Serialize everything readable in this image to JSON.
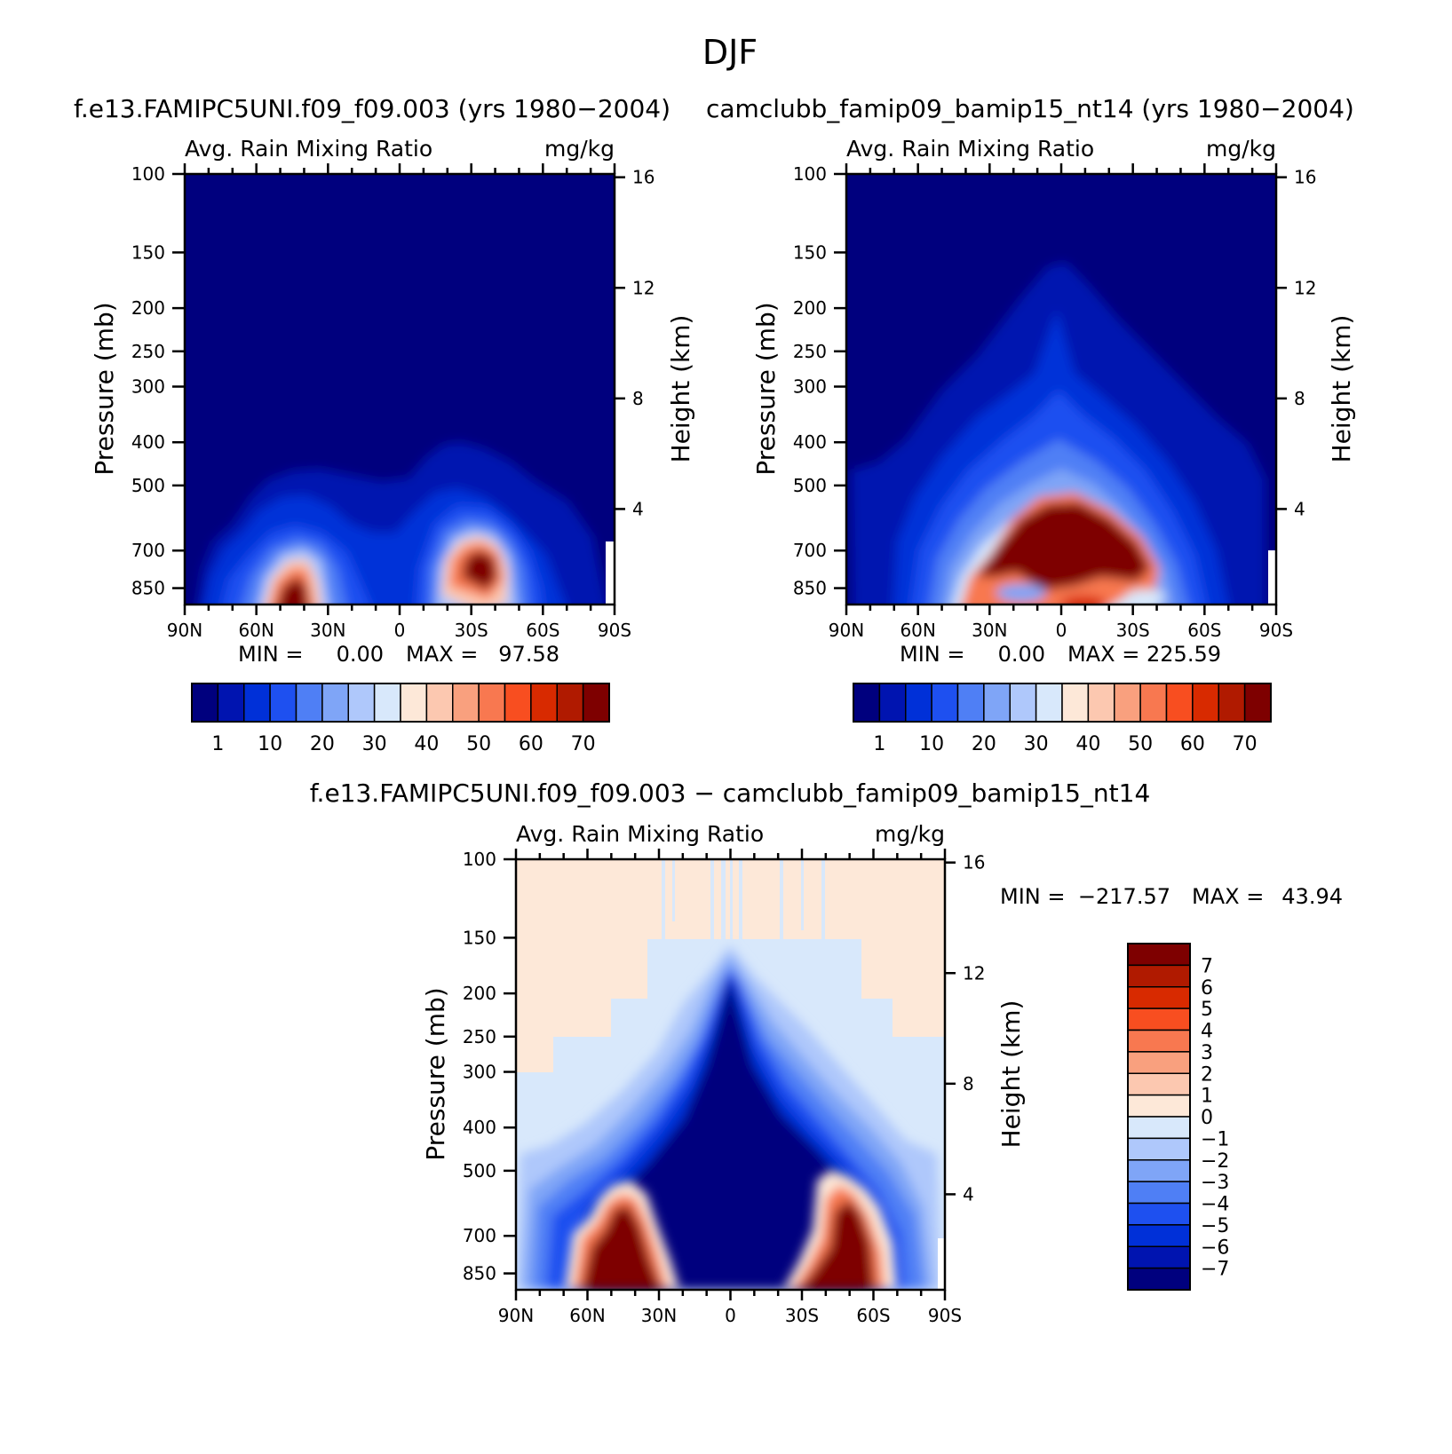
{
  "figure": {
    "title": "DJF"
  },
  "colors": {
    "abs_scale": [
      "#00007e",
      "#0014b0",
      "#0030d8",
      "#1e50f0",
      "#4f7ff5",
      "#7fa5f7",
      "#afc8fb",
      "#d8e8fb",
      "#fde8d8",
      "#fcc8b0",
      "#f9a07e",
      "#f87850",
      "#f84e20",
      "#d82a00",
      "#b01a00",
      "#7e0000"
    ],
    "diff_scale": [
      "#00007e",
      "#0014b0",
      "#0030d8",
      "#1e50f0",
      "#4f7ff5",
      "#7fa5f7",
      "#afc8fb",
      "#d8e8fb",
      "#fde8d8",
      "#fcc8b0",
      "#f9a07e",
      "#f87850",
      "#f84e20",
      "#d82a00",
      "#b01a00",
      "#7e0000"
    ]
  },
  "chart_data": [
    {
      "type": "heatmap",
      "title": "f.e13.FAMIPC5UNI.f09_f09.003 (yrs 1980−2004)",
      "subtitle_left": "Avg. Rain Mixing Ratio",
      "subtitle_right": "mg/kg",
      "ylabel": "Pressure (mb)",
      "ylabel_right": "Height (km)",
      "x_ticks": [
        "90N",
        "60N",
        "30N",
        "0",
        "30S",
        "60S",
        "90S"
      ],
      "y_ticks": [
        "100",
        "150",
        "200",
        "250",
        "300",
        "400",
        "500",
        "700",
        "850"
      ],
      "y_tick_values": [
        100,
        150,
        200,
        250,
        300,
        400,
        500,
        700,
        850
      ],
      "ylim": [
        100,
        925
      ],
      "height_ticks": [
        "16",
        "12",
        "8",
        "4"
      ],
      "height_tick_values": [
        16,
        12,
        8,
        4
      ],
      "min_label": "MIN =",
      "min_value": "0.00",
      "max_label": "MAX =",
      "max_value": "97.58",
      "colorbar_labels": [
        "1",
        "10",
        "20",
        "30",
        "40",
        "50",
        "60",
        "70"
      ],
      "peaks": [
        {
          "lat": 40,
          "p": 880,
          "value": 97.58
        },
        {
          "lat": -38,
          "p": 690,
          "value": 90
        }
      ]
    },
    {
      "type": "heatmap",
      "title": "camclubb_famip09_bamip15_nt14 (yrs 1980−2004)",
      "subtitle_left": "Avg. Rain Mixing Ratio",
      "subtitle_right": "mg/kg",
      "ylabel": "Pressure (mb)",
      "ylabel_right": "Height (km)",
      "x_ticks": [
        "90N",
        "60N",
        "30N",
        "0",
        "30S",
        "60S",
        "90S"
      ],
      "y_ticks": [
        "100",
        "150",
        "200",
        "250",
        "300",
        "400",
        "500",
        "700",
        "850"
      ],
      "y_tick_values": [
        100,
        150,
        200,
        250,
        300,
        400,
        500,
        700,
        850
      ],
      "ylim": [
        100,
        925
      ],
      "height_ticks": [
        "16",
        "12",
        "8",
        "4"
      ],
      "height_tick_values": [
        16,
        12,
        8,
        4
      ],
      "min_label": "MIN =",
      "min_value": "0.00",
      "max_label": "MAX =",
      "max_value": "225.59",
      "colorbar_labels": [
        "1",
        "10",
        "20",
        "30",
        "40",
        "50",
        "60",
        "70"
      ],
      "peaks": [
        {
          "lat": 0,
          "p": 640,
          "value": 225.59
        }
      ]
    },
    {
      "type": "heatmap",
      "title": "f.e13.FAMIPC5UNI.f09_f09.003 − camclubb_famip09_bamip15_nt14",
      "subtitle_left": "Avg. Rain Mixing Ratio",
      "subtitle_right": "mg/kg",
      "ylabel": "Pressure (mb)",
      "ylabel_right": "Height (km)",
      "x_ticks": [
        "90N",
        "60N",
        "30N",
        "0",
        "30S",
        "60S",
        "90S"
      ],
      "y_ticks": [
        "100",
        "150",
        "200",
        "250",
        "300",
        "400",
        "500",
        "700",
        "850"
      ],
      "y_tick_values": [
        100,
        150,
        200,
        250,
        300,
        400,
        500,
        700,
        850
      ],
      "ylim": [
        100,
        925
      ],
      "height_ticks": [
        "16",
        "12",
        "8",
        "4"
      ],
      "height_tick_values": [
        16,
        12,
        8,
        4
      ],
      "min_label": "MIN =",
      "min_value": "−217.57",
      "max_label": "MAX =",
      "max_value": "43.94",
      "colorbar_labels": [
        "7",
        "6",
        "5",
        "4",
        "3",
        "2",
        "1",
        "0",
        "−1",
        "−2",
        "−3",
        "−4",
        "−5",
        "−6",
        "−7"
      ]
    }
  ]
}
